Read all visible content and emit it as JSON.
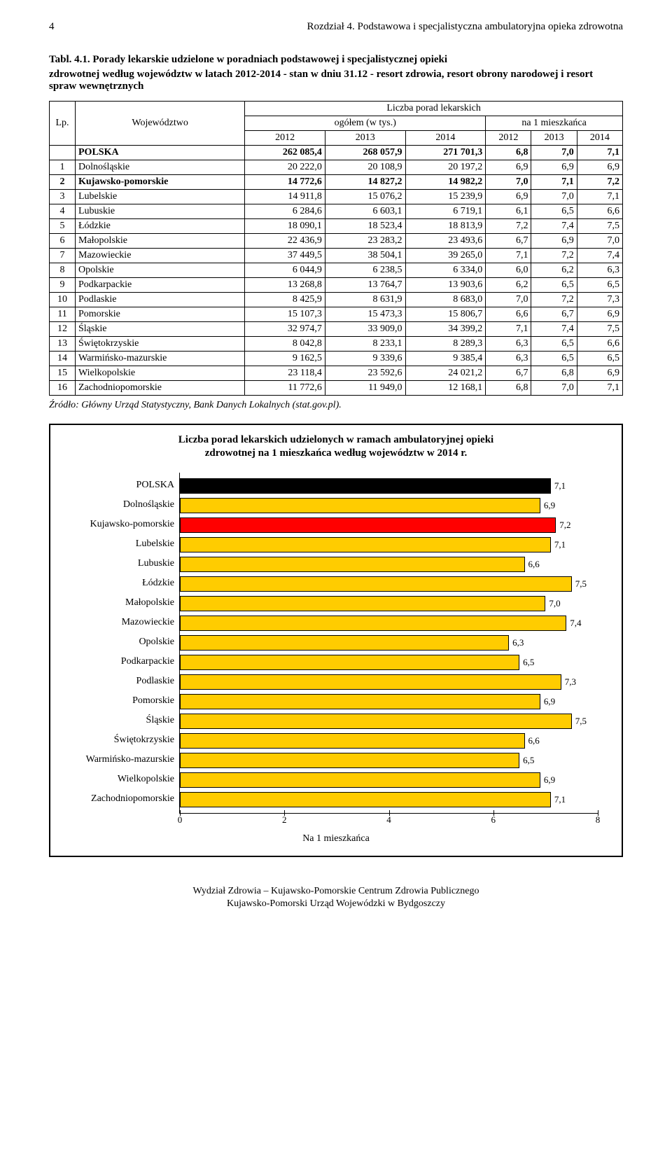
{
  "header": {
    "page_num": "4",
    "chapter": "Rozdział 4. Podstawowa i specjalistyczna ambulatoryjna opieka zdrowotna"
  },
  "tabl": {
    "label": "Tabl. 4.1. Porady lekarskie udzielone w poradniach podstawowej i specjalistycznej opieki",
    "sub": "zdrowotnej według województw w latach 2012-2014 - stan w dniu 31.12 - resort zdrowia, resort obrony narodowej i resort spraw wewnętrznych"
  },
  "table": {
    "col_lp": "Lp.",
    "col_woj": "Województwo",
    "col_liczba": "Liczba porad lekarskich",
    "col_ogolem": "ogółem (w tys.)",
    "col_na1": "na 1 mieszkańca",
    "years": [
      "2012",
      "2013",
      "2014",
      "2012",
      "2013",
      "2014"
    ],
    "rows": [
      {
        "lp": "",
        "name": "POLSKA",
        "bold": true,
        "v": [
          "262 085,4",
          "268 057,9",
          "271 701,3",
          "6,8",
          "7,0",
          "7,1"
        ]
      },
      {
        "lp": "1",
        "name": "Dolnośląskie",
        "v": [
          "20 222,0",
          "20 108,9",
          "20 197,2",
          "6,9",
          "6,9",
          "6,9"
        ]
      },
      {
        "lp": "2",
        "name": "Kujawsko-pomorskie",
        "bold": true,
        "v": [
          "14 772,6",
          "14 827,2",
          "14 982,2",
          "7,0",
          "7,1",
          "7,2"
        ]
      },
      {
        "lp": "3",
        "name": "Lubelskie",
        "v": [
          "14 911,8",
          "15 076,2",
          "15 239,9",
          "6,9",
          "7,0",
          "7,1"
        ]
      },
      {
        "lp": "4",
        "name": "Lubuskie",
        "v": [
          "6 284,6",
          "6 603,1",
          "6 719,1",
          "6,1",
          "6,5",
          "6,6"
        ]
      },
      {
        "lp": "5",
        "name": "Łódzkie",
        "v": [
          "18 090,1",
          "18 523,4",
          "18 813,9",
          "7,2",
          "7,4",
          "7,5"
        ]
      },
      {
        "lp": "6",
        "name": "Małopolskie",
        "v": [
          "22 436,9",
          "23 283,2",
          "23 493,6",
          "6,7",
          "6,9",
          "7,0"
        ]
      },
      {
        "lp": "7",
        "name": "Mazowieckie",
        "v": [
          "37 449,5",
          "38 504,1",
          "39 265,0",
          "7,1",
          "7,2",
          "7,4"
        ]
      },
      {
        "lp": "8",
        "name": "Opolskie",
        "v": [
          "6 044,9",
          "6 238,5",
          "6 334,0",
          "6,0",
          "6,2",
          "6,3"
        ]
      },
      {
        "lp": "9",
        "name": "Podkarpackie",
        "v": [
          "13 268,8",
          "13 764,7",
          "13 903,6",
          "6,2",
          "6,5",
          "6,5"
        ]
      },
      {
        "lp": "10",
        "name": "Podlaskie",
        "v": [
          "8 425,9",
          "8 631,9",
          "8 683,0",
          "7,0",
          "7,2",
          "7,3"
        ]
      },
      {
        "lp": "11",
        "name": "Pomorskie",
        "v": [
          "15 107,3",
          "15 473,3",
          "15 806,7",
          "6,6",
          "6,7",
          "6,9"
        ]
      },
      {
        "lp": "12",
        "name": "Śląskie",
        "v": [
          "32 974,7",
          "33 909,0",
          "34 399,2",
          "7,1",
          "7,4",
          "7,5"
        ]
      },
      {
        "lp": "13",
        "name": "Świętokrzyskie",
        "v": [
          "8 042,8",
          "8 233,1",
          "8 289,3",
          "6,3",
          "6,5",
          "6,6"
        ]
      },
      {
        "lp": "14",
        "name": "Warmińsko-mazurskie",
        "v": [
          "9 162,5",
          "9 339,6",
          "9 385,4",
          "6,3",
          "6,5",
          "6,5"
        ]
      },
      {
        "lp": "15",
        "name": "Wielkopolskie",
        "v": [
          "23 118,4",
          "23 592,6",
          "24 021,2",
          "6,7",
          "6,8",
          "6,9"
        ]
      },
      {
        "lp": "16",
        "name": "Zachodniopomorskie",
        "v": [
          "11 772,6",
          "11 949,0",
          "12 168,1",
          "6,8",
          "7,0",
          "7,1"
        ]
      }
    ]
  },
  "source": "Źródło: Główny Urząd Statystyczny, Bank Danych Lokalnych (stat.gov.pl).",
  "chart": {
    "title_l1": "Liczba porad lekarskich udzielonych w ramach ambulatoryjnej opieki",
    "title_l2": "zdrowotnej na 1 mieszkańca według województw w 2014 r.",
    "xlabel": "Na 1 mieszkańca",
    "xmax": 8,
    "xticks": [
      0,
      2,
      4,
      6,
      8
    ],
    "bar_colors": {
      "default": "#ffcc00",
      "polska": "#000000",
      "highlight": "#ff0000"
    },
    "bars": [
      {
        "label": "POLSKA",
        "value": 7.1,
        "disp": "7,1",
        "color": "polska"
      },
      {
        "label": "Dolnośląskie",
        "value": 6.9,
        "disp": "6,9",
        "color": "default"
      },
      {
        "label": "Kujawsko-pomorskie",
        "value": 7.2,
        "disp": "7,2",
        "color": "highlight"
      },
      {
        "label": "Lubelskie",
        "value": 7.1,
        "disp": "7,1",
        "color": "default"
      },
      {
        "label": "Lubuskie",
        "value": 6.6,
        "disp": "6,6",
        "color": "default"
      },
      {
        "label": "Łódzkie",
        "value": 7.5,
        "disp": "7,5",
        "color": "default"
      },
      {
        "label": "Małopolskie",
        "value": 7.0,
        "disp": "7,0",
        "color": "default"
      },
      {
        "label": "Mazowieckie",
        "value": 7.4,
        "disp": "7,4",
        "color": "default"
      },
      {
        "label": "Opolskie",
        "value": 6.3,
        "disp": "6,3",
        "color": "default"
      },
      {
        "label": "Podkarpackie",
        "value": 6.5,
        "disp": "6,5",
        "color": "default"
      },
      {
        "label": "Podlaskie",
        "value": 7.3,
        "disp": "7,3",
        "color": "default"
      },
      {
        "label": "Pomorskie",
        "value": 6.9,
        "disp": "6,9",
        "color": "default"
      },
      {
        "label": "Śląskie",
        "value": 7.5,
        "disp": "7,5",
        "color": "default"
      },
      {
        "label": "Świętokrzyskie",
        "value": 6.6,
        "disp": "6,6",
        "color": "default"
      },
      {
        "label": "Warmińsko-mazurskie",
        "value": 6.5,
        "disp": "6,5",
        "color": "default"
      },
      {
        "label": "Wielkopolskie",
        "value": 6.9,
        "disp": "6,9",
        "color": "default"
      },
      {
        "label": "Zachodniopomorskie",
        "value": 7.1,
        "disp": "7,1",
        "color": "default"
      }
    ]
  },
  "footer": {
    "l1": "Wydział Zdrowia – Kujawsko-Pomorskie Centrum Zdrowia Publicznego",
    "l2": "Kujawsko-Pomorski Urząd Wojewódzki w Bydgoszczy"
  }
}
